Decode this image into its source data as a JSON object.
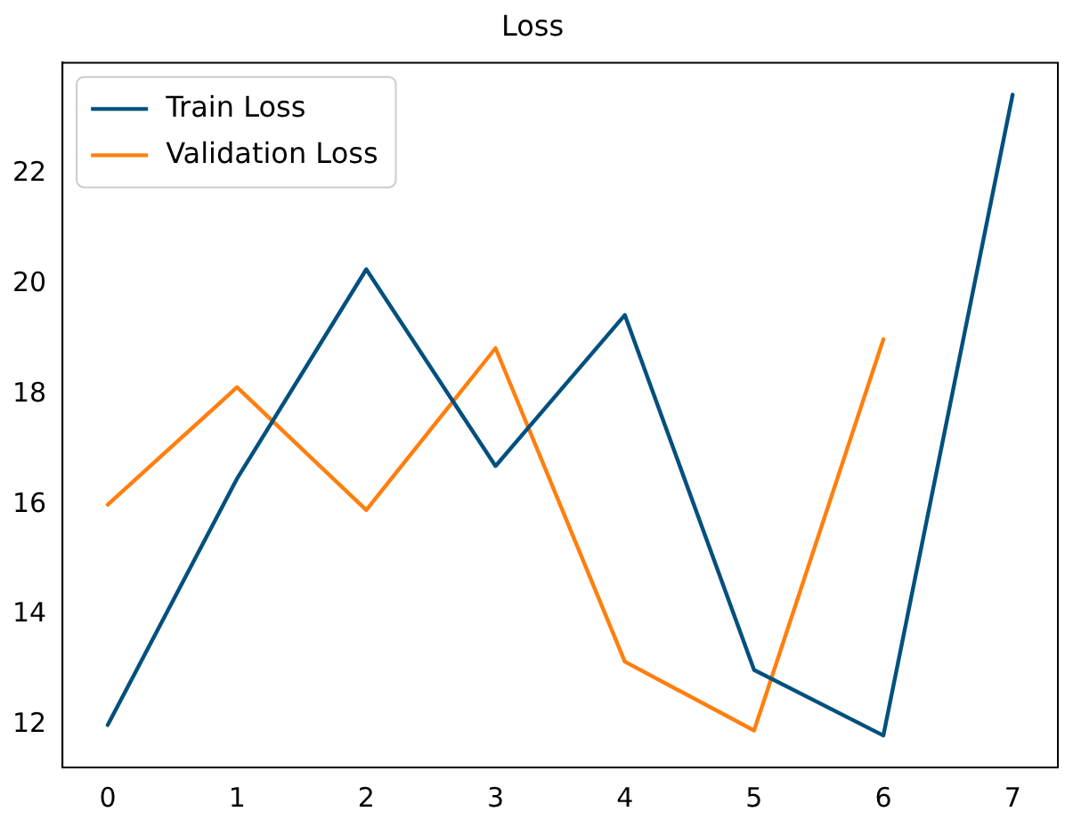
{
  "chart_data": {
    "type": "line",
    "title": "Loss",
    "x": [
      0,
      1,
      2,
      3,
      4,
      5,
      6,
      7
    ],
    "series": [
      {
        "name": "Train Loss",
        "color": "#00507e",
        "values": [
          12.0,
          16.47,
          20.27,
          16.7,
          19.44,
          13.0,
          11.81,
          23.44
        ]
      },
      {
        "name": "Validation Loss",
        "color": "#ff7f0e",
        "values": [
          16.0,
          18.13,
          15.9,
          18.84,
          13.15,
          11.9,
          19.0,
          null
        ]
      }
    ],
    "xlim": [
      -0.35,
      7.35
    ],
    "xticks": [
      0,
      1,
      2,
      3,
      4,
      5,
      6,
      7
    ],
    "ylim": [
      11.23,
      24.02
    ],
    "yticks": [
      12,
      14,
      16,
      18,
      20,
      22
    ],
    "grid": false,
    "legend": "top left",
    "marker": "none",
    "line_style": "solid"
  }
}
